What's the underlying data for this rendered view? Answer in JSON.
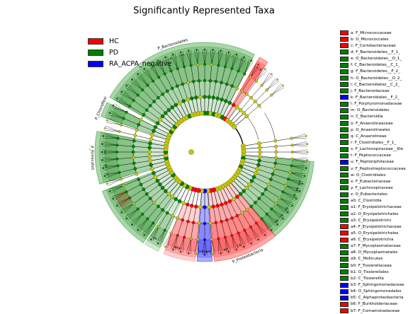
{
  "title": "Significantly Represented Taxa",
  "colors": {
    "HC": "#ff0000",
    "PD": "#008000",
    "RA_ACPA_negative": "#0000ff",
    "node_default": "#c8c800",
    "line": "#000000"
  },
  "legend": [
    {
      "name": "HC",
      "color": "#ff0000"
    },
    {
      "name": "PD",
      "color": "#008000"
    },
    {
      "name": "RA_ACPA_negative",
      "color": "#0000ff"
    }
  ],
  "chart_data": {
    "type": "cladogram",
    "title": "Significantly Represented Taxa",
    "groups": [
      "HC",
      "PD",
      "RA_ACPA_negative"
    ],
    "clade_labels": [
      {
        "label": "P_Bacteroidetes",
        "group": "PD"
      },
      {
        "label": "P_Chloroflexi",
        "group": "PD"
      },
      {
        "label": "P_Firmicutes",
        "group": "PD"
      },
      {
        "label": "P_Proteobacteria",
        "group": "HC"
      }
    ],
    "taxa": [
      {
        "key": "a",
        "name": "F_Micrococcaceae",
        "group": "HC"
      },
      {
        "key": "b",
        "name": "O_Micrococcales",
        "group": "HC"
      },
      {
        "key": "c",
        "name": "F_Coriobacteriaceae",
        "group": "HC"
      },
      {
        "key": "d",
        "name": "F_Bacteroidetes__F_1_",
        "group": "PD"
      },
      {
        "key": "e",
        "name": "O_Bacteroidetes__O_1_",
        "group": "PD"
      },
      {
        "key": "f",
        "name": "C_Bacteroidetes__C_1_",
        "group": "PD"
      },
      {
        "key": "g",
        "name": "F_Bacteroidetes__F_2_",
        "group": "PD"
      },
      {
        "key": "h",
        "name": "O_Bacteroidetes__O_2_",
        "group": "PD"
      },
      {
        "key": "i",
        "name": "C_Bacteroidetes__C_2_",
        "group": "PD"
      },
      {
        "key": "j",
        "name": "F_Bacteroidaceae",
        "group": "PD"
      },
      {
        "key": "k",
        "name": "F_Bacteroidales__F_2_",
        "group": "RA_ACPA_negative"
      },
      {
        "key": "l",
        "name": "F_Porphyromonadaceae",
        "group": "PD"
      },
      {
        "key": "m",
        "name": "O_Bacteroidales",
        "group": "PD"
      },
      {
        "key": "n",
        "name": "C_Bacteroidia",
        "group": "PD"
      },
      {
        "key": "o",
        "name": "F_Anaerolineaceae",
        "group": "PD"
      },
      {
        "key": "p",
        "name": "O_Anaerolineales",
        "group": "PD"
      },
      {
        "key": "q",
        "name": "C_Anaerolineae",
        "group": "PD"
      },
      {
        "key": "r",
        "name": "F_Clostridiales__F_1_",
        "group": "PD"
      },
      {
        "key": "s",
        "name": "F_Lachnospiraceae__Kle",
        "group": "PD"
      },
      {
        "key": "t",
        "name": "F_Peptococcaceae",
        "group": "PD"
      },
      {
        "key": "u",
        "name": "F_Peptoniphilaceae",
        "group": "RA_ACPA_negative"
      },
      {
        "key": "v",
        "name": "F_Peptostreptococcaceae",
        "group": "PD"
      },
      {
        "key": "w",
        "name": "O_Clostridiales",
        "group": "PD"
      },
      {
        "key": "x",
        "name": "F_Eubacteriaceae",
        "group": "PD"
      },
      {
        "key": "y",
        "name": "F_Lachnospiraceae",
        "group": "PD"
      },
      {
        "key": "z",
        "name": "O_Eubacteriales",
        "group": "PD"
      },
      {
        "key": "a0",
        "name": "C_Clostridia",
        "group": "PD"
      },
      {
        "key": "a1",
        "name": "F_Erysipelotrichaceae",
        "group": "PD"
      },
      {
        "key": "a2",
        "name": "O_Erysipelotrichales",
        "group": "PD"
      },
      {
        "key": "a3",
        "name": "C_Erysipelotrichi",
        "group": "PD"
      },
      {
        "key": "a4",
        "name": "F_Erysipelotrichaceae",
        "group": "HC"
      },
      {
        "key": "a5",
        "name": "O_Erysipelotrichales",
        "group": "HC"
      },
      {
        "key": "a6",
        "name": "C_Erysipelotrichia",
        "group": "HC"
      },
      {
        "key": "a7",
        "name": "F_Mycoplasmataceae",
        "group": "PD"
      },
      {
        "key": "a8",
        "name": "O_Mycoplasmatales",
        "group": "PD"
      },
      {
        "key": "a9",
        "name": "C_Mollicutes",
        "group": "PD"
      },
      {
        "key": "b0",
        "name": "F_Tissierellaceae",
        "group": "PD"
      },
      {
        "key": "b1",
        "name": "O_Tissierellales",
        "group": "PD"
      },
      {
        "key": "b2",
        "name": "C_Tissierellia",
        "group": "PD"
      },
      {
        "key": "b3",
        "name": "F_Sphingomonadaceae",
        "group": "RA_ACPA_negative"
      },
      {
        "key": "b4",
        "name": "O_Sphingomonadales",
        "group": "RA_ACPA_negative"
      },
      {
        "key": "b5",
        "name": "C_Alphaproteobacteria",
        "group": "RA_ACPA_negative"
      },
      {
        "key": "b6",
        "name": "F_Burkholderiaceae",
        "group": "HC"
      },
      {
        "key": "b7",
        "name": "F_Comamonadaceae",
        "group": "HC"
      }
    ],
    "sectors": [
      {
        "label": "P_Bacteroidetes",
        "group": "PD",
        "start": 300,
        "end": 27,
        "depth": 4,
        "print": true
      },
      {
        "label": "P_Chloroflexi",
        "group": "PD",
        "start": 289,
        "end": 297,
        "depth": 4,
        "print": true
      },
      {
        "label": "",
        "group": "HC",
        "start": 30,
        "end": 35,
        "depth": 4,
        "print": false
      },
      {
        "label": "P_Firmicutes",
        "group": "PD",
        "start": 253,
        "end": 281,
        "depth": 4,
        "print": true
      },
      {
        "label": "",
        "group": "PD",
        "start": 214,
        "end": 249,
        "depth": 4,
        "print": false
      },
      {
        "label": "",
        "group": "HC",
        "start": 236,
        "end": 244,
        "depth": 1,
        "print": false
      },
      {
        "label": "",
        "group": "PD",
        "start": 205,
        "end": 213,
        "depth": 3,
        "print": false
      },
      {
        "label": "",
        "group": "PD",
        "start": 95,
        "end": 140,
        "depth": 4,
        "print": true
      },
      {
        "label": "P_Proteobacteria",
        "group": "HC",
        "start": 140,
        "end": 175,
        "depth": 4,
        "print": true
      },
      {
        "label": "",
        "group": "RA_ACPA_negative",
        "start": 176,
        "end": 184,
        "depth": 4,
        "print": false
      },
      {
        "label": "",
        "group": "HC",
        "start": 185,
        "end": 202,
        "depth": 3,
        "print": false
      }
    ],
    "letter_labels": [
      {
        "key": "a0",
        "angle": 262
      },
      {
        "key": "w",
        "angle": 270
      },
      {
        "key": "z",
        "angle": 257
      },
      {
        "key": "n",
        "angle": 340
      },
      {
        "key": "m",
        "angle": 347
      },
      {
        "key": "f",
        "angle": 8
      },
      {
        "key": "i",
        "angle": 16
      },
      {
        "key": "h",
        "angle": 22
      },
      {
        "key": "c",
        "angle": 32
      },
      {
        "key": "b",
        "angle": 34
      },
      {
        "key": "b5",
        "angle": 180
      },
      {
        "key": "b4",
        "angle": 178
      },
      {
        "key": "b3",
        "angle": 182
      },
      {
        "key": "a6",
        "angle": 197
      },
      {
        "key": "a5",
        "angle": 195
      },
      {
        "key": "a3",
        "angle": 210
      },
      {
        "key": "a9",
        "angle": 108
      },
      {
        "key": "a8",
        "angle": 112
      },
      {
        "key": "a7",
        "angle": 116
      },
      {
        "key": "b2",
        "angle": 125
      },
      {
        "key": "b1",
        "angle": 130
      },
      {
        "key": "b0",
        "angle": 134
      },
      {
        "key": "b7",
        "angle": 160
      },
      {
        "key": "b6",
        "angle": 168
      }
    ]
  }
}
